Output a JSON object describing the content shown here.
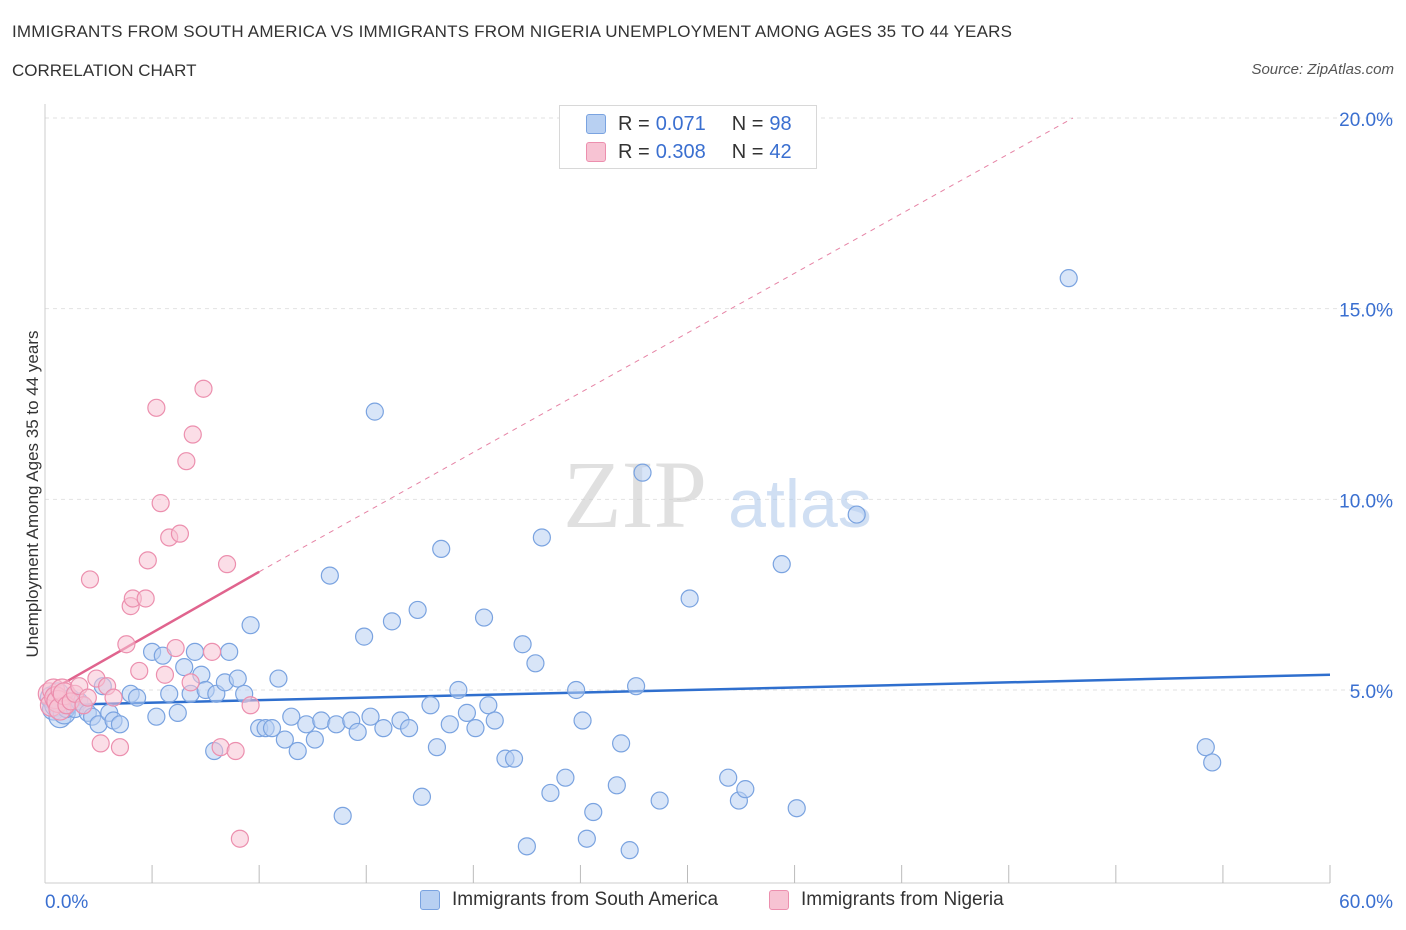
{
  "header": {
    "title": "IMMIGRANTS FROM SOUTH AMERICA VS IMMIGRANTS FROM NIGERIA UNEMPLOYMENT AMONG AGES 35 TO 44 YEARS",
    "subtitle": "CORRELATION CHART",
    "source": "Source: ZipAtlas.com"
  },
  "watermark": {
    "zip": "ZIP",
    "atlas": "atlas"
  },
  "legend": {
    "rows": [
      {
        "r_label": "R =",
        "r_value": "0.071",
        "n_label": "N =",
        "n_value": "98"
      },
      {
        "r_label": "R =",
        "r_value": "0.308",
        "n_label": "N =",
        "n_value": "42"
      }
    ]
  },
  "colors": {
    "blue_fill": "#b8d0f2",
    "blue_stroke": "#7aa3e0",
    "blue_line": "#2f6fce",
    "pink_fill": "#f7c3d3",
    "pink_stroke": "#ec8fae",
    "pink_line": "#e0648e",
    "axis_text": "#3a6fd0",
    "grid": "#e2e2e2"
  },
  "chart_data": {
    "type": "scatter",
    "title": "IMMIGRANTS FROM SOUTH AMERICA VS IMMIGRANTS FROM NIGERIA UNEMPLOYMENT AMONG AGES 35 TO 44 YEARS",
    "xlabel": "",
    "ylabel": "Unemployment Among Ages 35 to 44 years",
    "xlim": [
      0,
      60
    ],
    "ylim": [
      0,
      20
    ],
    "x_tick_labels": [
      "0.0%",
      "60.0%"
    ],
    "y_ticks": [
      5,
      10,
      15,
      20
    ],
    "y_tick_labels": [
      "5.0%",
      "10.0%",
      "15.0%",
      "20.0%"
    ],
    "grid": true,
    "legend_position": "top-center",
    "series": [
      {
        "name": "Immigrants from South America",
        "color": "#7aa3e0",
        "R": 0.071,
        "N": 98,
        "trend": {
          "x0": 0,
          "y0": 4.6,
          "x1": 60,
          "y1": 5.4,
          "style": "solid"
        },
        "points": [
          [
            0.3,
            4.8
          ],
          [
            0.4,
            4.5
          ],
          [
            0.5,
            4.6
          ],
          [
            0.6,
            4.9
          ],
          [
            0.7,
            4.3
          ],
          [
            0.8,
            4.7
          ],
          [
            0.9,
            4.4
          ],
          [
            1.0,
            4.5
          ],
          [
            1.1,
            4.6
          ],
          [
            1.2,
            4.8
          ],
          [
            1.4,
            4.5
          ],
          [
            1.6,
            4.7
          ],
          [
            1.8,
            4.6
          ],
          [
            2.0,
            4.4
          ],
          [
            2.2,
            4.3
          ],
          [
            2.5,
            4.1
          ],
          [
            2.7,
            5.1
          ],
          [
            3.0,
            4.4
          ],
          [
            3.2,
            4.2
          ],
          [
            3.5,
            4.1
          ],
          [
            4.0,
            4.9
          ],
          [
            4.3,
            4.8
          ],
          [
            5.0,
            6.0
          ],
          [
            5.2,
            4.3
          ],
          [
            5.5,
            5.9
          ],
          [
            5.8,
            4.9
          ],
          [
            6.2,
            4.4
          ],
          [
            6.5,
            5.6
          ],
          [
            6.8,
            4.9
          ],
          [
            7.0,
            6.0
          ],
          [
            7.3,
            5.4
          ],
          [
            7.5,
            5.0
          ],
          [
            7.9,
            3.4
          ],
          [
            8.0,
            4.9
          ],
          [
            8.4,
            5.2
          ],
          [
            8.6,
            6.0
          ],
          [
            9.0,
            5.3
          ],
          [
            9.3,
            4.9
          ],
          [
            9.6,
            6.7
          ],
          [
            10.0,
            4.0
          ],
          [
            10.3,
            4.0
          ],
          [
            10.6,
            4.0
          ],
          [
            10.9,
            5.3
          ],
          [
            11.2,
            3.7
          ],
          [
            11.5,
            4.3
          ],
          [
            11.8,
            3.4
          ],
          [
            12.2,
            4.1
          ],
          [
            12.6,
            3.7
          ],
          [
            12.9,
            4.2
          ],
          [
            13.3,
            8.0
          ],
          [
            13.6,
            4.1
          ],
          [
            13.9,
            1.7
          ],
          [
            14.3,
            4.2
          ],
          [
            14.6,
            3.9
          ],
          [
            14.9,
            6.4
          ],
          [
            15.2,
            4.3
          ],
          [
            15.4,
            12.3
          ],
          [
            15.8,
            4.0
          ],
          [
            16.2,
            6.8
          ],
          [
            16.6,
            4.2
          ],
          [
            17.0,
            4.0
          ],
          [
            17.4,
            7.1
          ],
          [
            17.6,
            2.2
          ],
          [
            18.0,
            4.6
          ],
          [
            18.3,
            3.5
          ],
          [
            18.5,
            8.7
          ],
          [
            18.9,
            4.1
          ],
          [
            19.3,
            5.0
          ],
          [
            19.7,
            4.4
          ],
          [
            20.1,
            4.0
          ],
          [
            20.5,
            6.9
          ],
          [
            20.7,
            4.6
          ],
          [
            21.0,
            4.2
          ],
          [
            21.5,
            3.2
          ],
          [
            21.9,
            3.2
          ],
          [
            22.3,
            6.2
          ],
          [
            22.5,
            0.9
          ],
          [
            22.9,
            5.7
          ],
          [
            23.2,
            9.0
          ],
          [
            23.6,
            2.3
          ],
          [
            24.3,
            2.7
          ],
          [
            24.8,
            5.0
          ],
          [
            25.1,
            4.2
          ],
          [
            25.3,
            1.1
          ],
          [
            25.6,
            1.8
          ],
          [
            26.7,
            2.5
          ],
          [
            26.9,
            3.6
          ],
          [
            27.3,
            0.8
          ],
          [
            27.6,
            5.1
          ],
          [
            27.9,
            10.7
          ],
          [
            28.7,
            2.1
          ],
          [
            30.1,
            7.4
          ],
          [
            31.9,
            2.7
          ],
          [
            32.4,
            2.1
          ],
          [
            32.7,
            2.4
          ],
          [
            34.4,
            8.3
          ],
          [
            35.1,
            1.9
          ],
          [
            37.9,
            9.6
          ],
          [
            47.8,
            15.8
          ],
          [
            54.2,
            3.5
          ],
          [
            54.5,
            3.1
          ]
        ]
      },
      {
        "name": "Immigrants from Nigeria",
        "color": "#ec8fae",
        "R": 0.308,
        "N": 42,
        "trend": {
          "x0": 0,
          "y0": 4.9,
          "x1": 10,
          "y1": 8.1,
          "style": "solid",
          "extension": {
            "x1": 48,
            "y1": 20.0,
            "style": "dashed"
          }
        },
        "points": [
          [
            0.2,
            4.9
          ],
          [
            0.3,
            4.6
          ],
          [
            0.4,
            5.0
          ],
          [
            0.5,
            4.8
          ],
          [
            0.6,
            4.7
          ],
          [
            0.7,
            4.5
          ],
          [
            0.8,
            5.0
          ],
          [
            0.9,
            4.9
          ],
          [
            1.0,
            4.6
          ],
          [
            1.2,
            4.7
          ],
          [
            1.4,
            4.9
          ],
          [
            1.6,
            5.1
          ],
          [
            1.8,
            4.6
          ],
          [
            2.0,
            4.8
          ],
          [
            2.1,
            7.9
          ],
          [
            2.4,
            5.3
          ],
          [
            2.6,
            3.6
          ],
          [
            2.9,
            5.1
          ],
          [
            3.2,
            4.8
          ],
          [
            3.5,
            3.5
          ],
          [
            3.8,
            6.2
          ],
          [
            4.0,
            7.2
          ],
          [
            4.1,
            7.4
          ],
          [
            4.4,
            5.5
          ],
          [
            4.7,
            7.4
          ],
          [
            4.8,
            8.4
          ],
          [
            5.2,
            12.4
          ],
          [
            5.4,
            9.9
          ],
          [
            5.6,
            5.4
          ],
          [
            5.8,
            9.0
          ],
          [
            6.1,
            6.1
          ],
          [
            6.3,
            9.1
          ],
          [
            6.6,
            11.0
          ],
          [
            6.8,
            5.2
          ],
          [
            6.9,
            11.7
          ],
          [
            7.4,
            12.9
          ],
          [
            7.8,
            6.0
          ],
          [
            8.2,
            3.5
          ],
          [
            8.5,
            8.3
          ],
          [
            8.9,
            3.4
          ],
          [
            9.1,
            1.1
          ],
          [
            9.6,
            4.6
          ]
        ]
      }
    ]
  },
  "bottom_legend": {
    "items": [
      {
        "label": "Immigrants from South America"
      },
      {
        "label": "Immigrants from Nigeria"
      }
    ]
  }
}
